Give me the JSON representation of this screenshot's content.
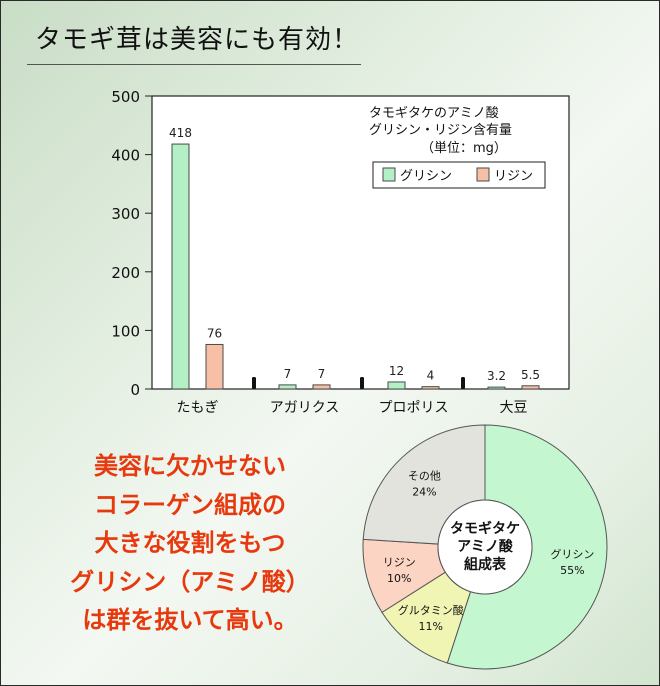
{
  "headline": "タモギ茸は美容にも有効！",
  "chart_data": [
    {
      "type": "bar",
      "title": [
        "タモギタケのアミノ酸",
        "グリシン・リジン含有量"
      ],
      "unit": "（単位：mg）",
      "categories": [
        "たもぎ",
        "アガリクス",
        "プロポリス",
        "大豆"
      ],
      "category_colors": [
        "#e8380d",
        "#111111",
        "#111111",
        "#111111"
      ],
      "series": [
        {
          "name": "グリシン",
          "values": [
            418,
            7,
            12,
            3.2
          ],
          "labels": [
            "418",
            "7",
            "12",
            "3.2"
          ],
          "color": "#b3f0c5"
        },
        {
          "name": "リジン",
          "values": [
            76,
            7,
            4,
            5.5
          ],
          "labels": [
            "76",
            "7",
            "4",
            "5.5"
          ],
          "color": "#f7c0a6"
        }
      ],
      "ylim": [
        0,
        500
      ],
      "yticks": [
        0,
        100,
        200,
        300,
        400,
        500
      ],
      "legend_position": "top-right",
      "grid": false
    },
    {
      "type": "pie",
      "style": "donut",
      "center_label": [
        "タモギタケ",
        "アミノ酸",
        "組成表"
      ],
      "slices": [
        {
          "label": "グリシン",
          "percent_label": "55%",
          "value": 55,
          "color": "#c4f7d0"
        },
        {
          "label": "グルタミン酸",
          "percent_label": "11%",
          "value": 11,
          "color": "#f1f5b4"
        },
        {
          "label": "リジン",
          "percent_label": "10%",
          "value": 10,
          "color": "#fbd4c3"
        },
        {
          "label": "その他",
          "percent_label": "24%",
          "value": 24,
          "color": "#e3e3de"
        }
      ]
    }
  ],
  "catchcopy": [
    "美容に欠かせない",
    "コラーゲン組成の",
    "大きな役割をもつ",
    "グリシン（アミノ酸）",
    "は群を抜いて高い。"
  ]
}
